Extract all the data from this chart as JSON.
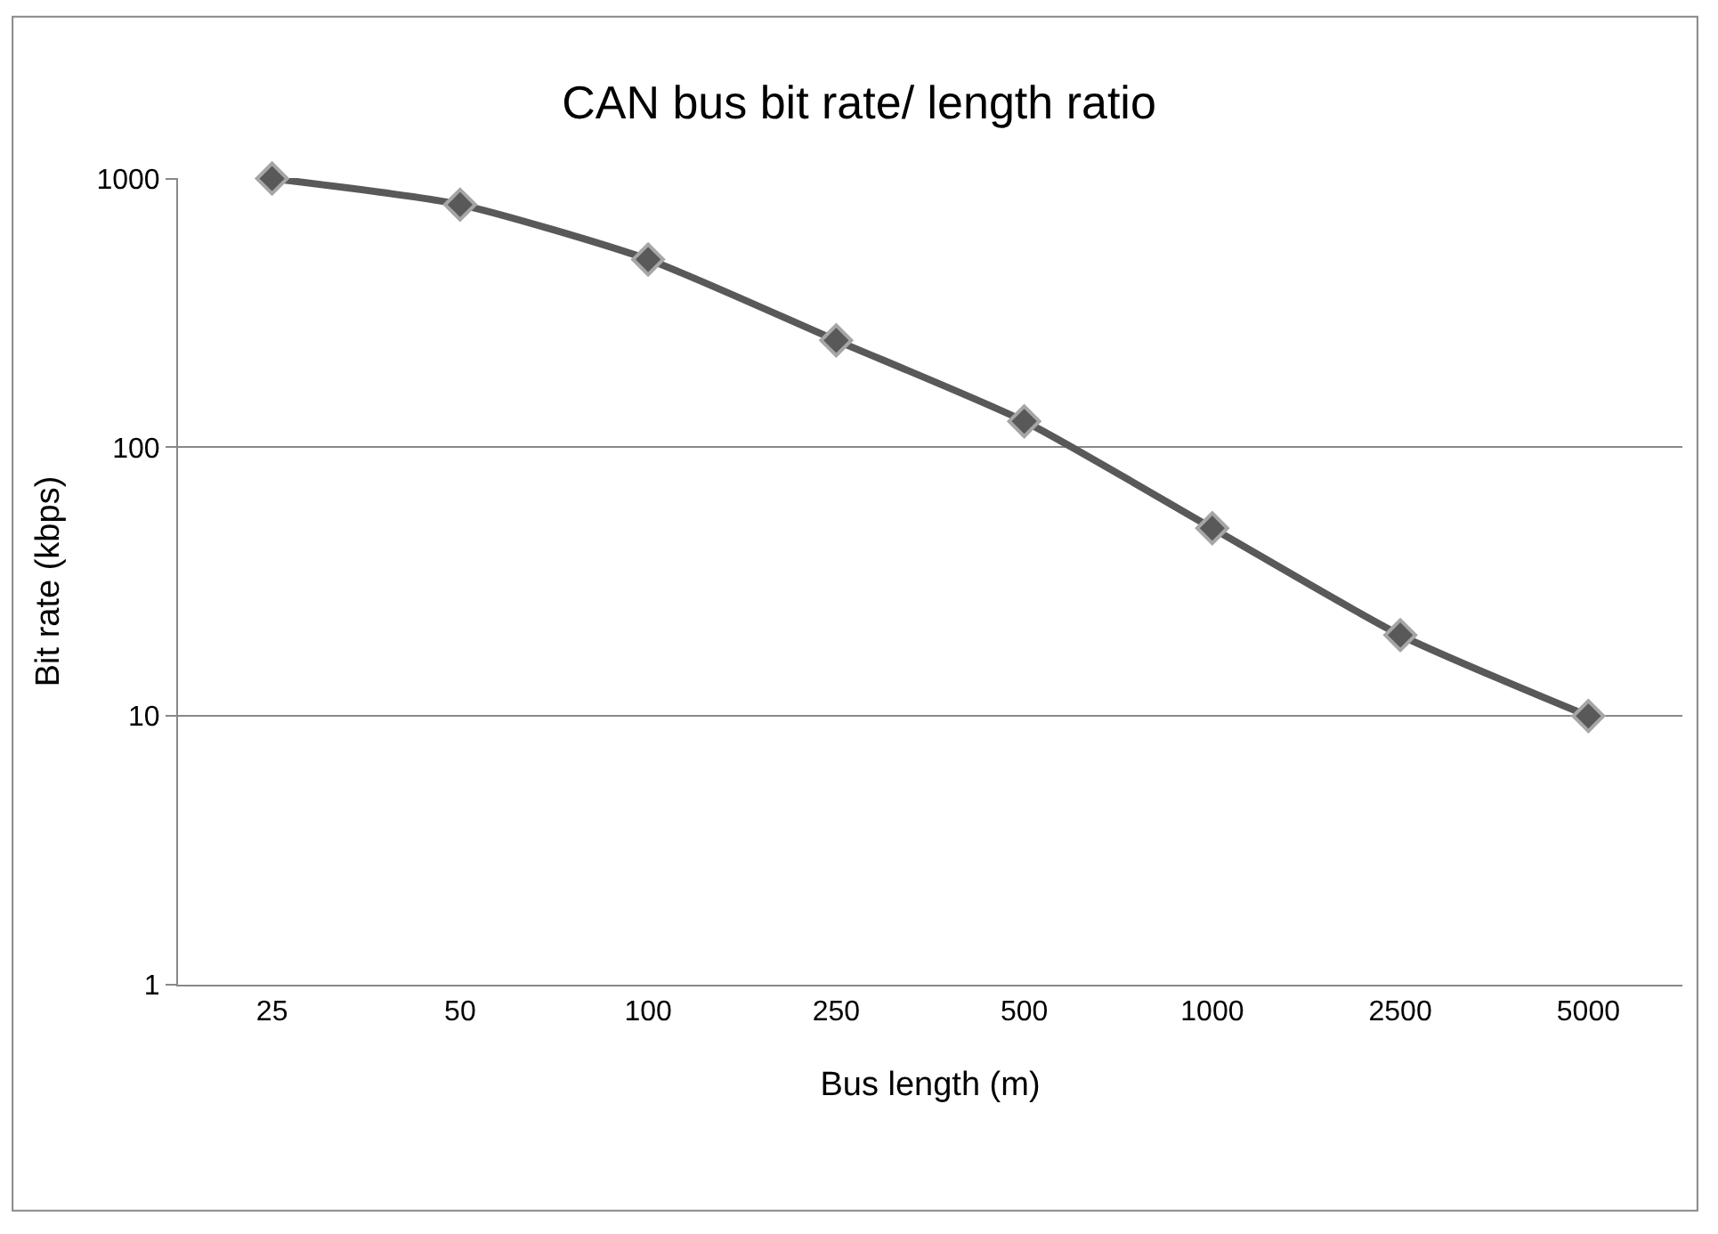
{
  "chart_data": {
    "type": "line",
    "title": "CAN bus bit rate/ length ratio",
    "xlabel": "Bus length (m)",
    "ylabel": "Bit rate (kbps)",
    "categories": [
      "25",
      "50",
      "100",
      "250",
      "500",
      "1000",
      "2500",
      "5000"
    ],
    "series": [
      {
        "color": "#595959",
        "values": [
          1000,
          800,
          500,
          250,
          125,
          50,
          20,
          10
        ]
      }
    ],
    "ylim": [
      1,
      1000
    ],
    "yticks": [
      1,
      10,
      100,
      1000
    ],
    "log": true,
    "grid": "y",
    "marker": "diamond",
    "line_style": "solid"
  }
}
